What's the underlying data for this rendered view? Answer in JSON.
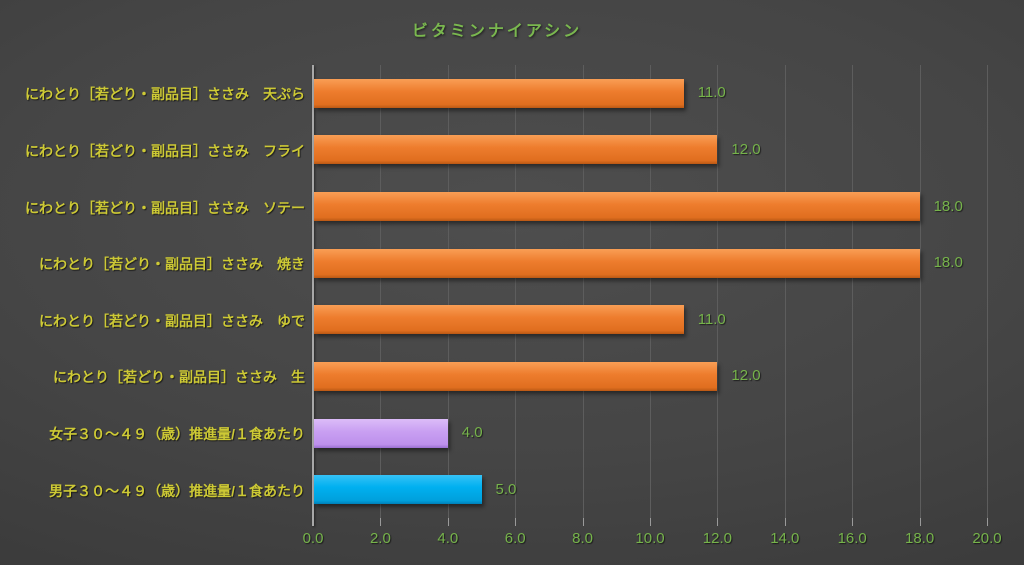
{
  "title": "ビタミンナイアシン",
  "colors": {
    "title_green": "#7ab84f",
    "axis_label_green": "#76b34b",
    "value_label_green": "#76b34b",
    "category_label_yellow": "#cdc935",
    "gridline_gray": "#5d5d5d",
    "tick_gray": "#9a9a9a",
    "axis_line_gray": "#a8a8a8",
    "bar_orange": "#ee7d2e",
    "bar_purple": "#c9a0f2",
    "bar_blue": "#00b0f0"
  },
  "bar_styles": {
    "orange": {
      "top": "#f99e55",
      "mid": "#ee7d2e",
      "low": "#e06e1f",
      "bottom": "#b95814"
    },
    "purple": {
      "top": "#dcbcf8",
      "mid": "#c9a0f2",
      "low": "#bd90ec",
      "bottom": "#9a6fd0"
    },
    "blue": {
      "top": "#36c2f6",
      "mid": "#00b0f0",
      "low": "#00a0dc",
      "bottom": "#0080b8"
    }
  },
  "chart_data": {
    "type": "bar",
    "orientation": "horizontal",
    "title": "ビタミンナイアシン",
    "categories": [
      "にわとり［若どり・副品目］ささみ　天ぷら",
      "にわとり［若どり・副品目］ささみ　フライ",
      "にわとり［若どり・副品目］ささみ　ソテー",
      "にわとり［若どり・副品目］ささみ　焼き",
      "にわとり［若どり・副品目］ささみ　ゆで",
      "にわとり［若どり・副品目］ささみ　生",
      "女子３０～４９（歳）推進量/１食あたり",
      "男子３０～４９（歳）推進量/１食あたり"
    ],
    "values": [
      11,
      12,
      18,
      18,
      11,
      12,
      4,
      5
    ],
    "value_labels": [
      "11.0",
      "12.0",
      "18.0",
      "18.0",
      "11.0",
      "12.0",
      "4.0",
      "5.0"
    ],
    "bar_color_keys": [
      "orange",
      "orange",
      "orange",
      "orange",
      "orange",
      "orange",
      "purple",
      "blue"
    ],
    "xlabel": "",
    "ylabel": "",
    "xlim": [
      0,
      20
    ],
    "x_tick_values": [
      0,
      2,
      4,
      6,
      8,
      10,
      12,
      14,
      16,
      18,
      20
    ],
    "x_tick_labels": [
      "0.0",
      "2.0",
      "4.0",
      "6.0",
      "8.0",
      "10.0",
      "12.0",
      "14.0",
      "16.0",
      "18.0",
      "20.0"
    ],
    "grid": true,
    "legend": false
  }
}
